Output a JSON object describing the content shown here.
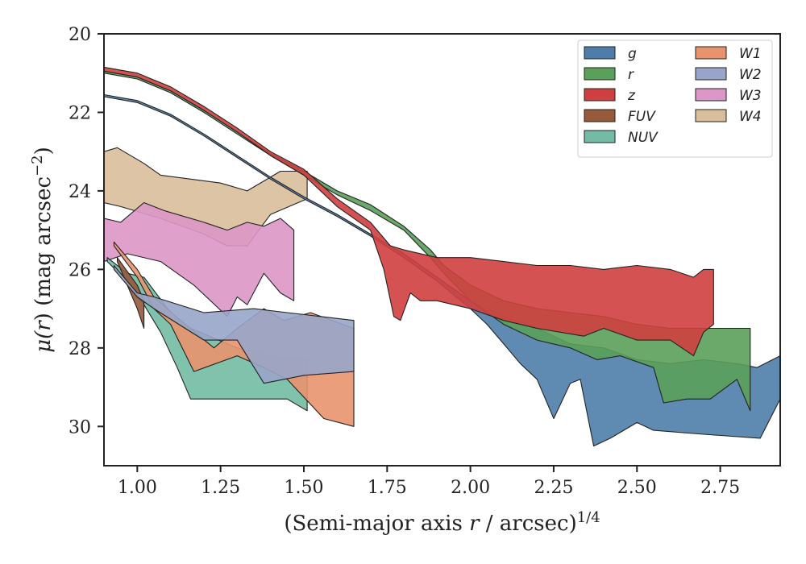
{
  "chart_data": {
    "type": "area",
    "xlabel": "(Semi-major axis r / arcsec)^1/4",
    "xlabel_parts": {
      "pre": "(Semi-major axis ",
      "var": "r",
      "post": " / arcsec)",
      "sup": "1/4"
    },
    "ylabel": "μ(r) (mag arcsec^-2)",
    "ylabel_parts": {
      "mu": "μ(",
      "var": "r",
      "close": ") (mag arcsec",
      "sup": "−2",
      "end": ")"
    },
    "xlim": [
      0.9,
      2.93
    ],
    "ylim": [
      31.0,
      20.0
    ],
    "y_inverted": true,
    "xticks": [
      1.0,
      1.25,
      1.5,
      1.75,
      2.0,
      2.25,
      2.5,
      2.75
    ],
    "xtick_labels": [
      "1.00",
      "1.25",
      "1.50",
      "1.75",
      "2.00",
      "2.25",
      "2.50",
      "2.75"
    ],
    "yticks": [
      20,
      22,
      24,
      26,
      28,
      30
    ],
    "ytick_labels": [
      "20",
      "22",
      "24",
      "26",
      "28",
      "30"
    ],
    "grid": false,
    "legend_position": "top-right",
    "legend_columns": 2,
    "series": [
      {
        "name": "W4",
        "color": "#d9be9a",
        "upper": [
          [
            0.9,
            23.0
          ],
          [
            0.94,
            22.9
          ],
          [
            1.02,
            23.3
          ],
          [
            1.07,
            23.6
          ],
          [
            1.25,
            23.8
          ],
          [
            1.33,
            24.0
          ],
          [
            1.43,
            23.5
          ],
          [
            1.51,
            23.5
          ]
        ],
        "lower": [
          [
            0.9,
            24.3
          ],
          [
            0.95,
            24.4
          ],
          [
            1.07,
            24.7
          ],
          [
            1.2,
            25.1
          ],
          [
            1.27,
            25.4
          ],
          [
            1.33,
            25.4
          ],
          [
            1.4,
            24.6
          ],
          [
            1.51,
            24.2
          ]
        ]
      },
      {
        "name": "W3",
        "color": "#dc97c7",
        "upper": [
          [
            0.9,
            24.7
          ],
          [
            0.95,
            24.8
          ],
          [
            1.02,
            24.3
          ],
          [
            1.08,
            24.5
          ],
          [
            1.2,
            24.8
          ],
          [
            1.27,
            25.0
          ],
          [
            1.33,
            24.8
          ],
          [
            1.38,
            24.9
          ],
          [
            1.43,
            24.7
          ],
          [
            1.47,
            25.0
          ]
        ],
        "lower": [
          [
            0.9,
            25.8
          ],
          [
            0.97,
            25.6
          ],
          [
            1.07,
            25.8
          ],
          [
            1.17,
            26.4
          ],
          [
            1.27,
            27.2
          ],
          [
            1.3,
            26.7
          ],
          [
            1.33,
            26.9
          ],
          [
            1.38,
            26.1
          ],
          [
            1.43,
            26.6
          ],
          [
            1.47,
            26.8
          ]
        ]
      },
      {
        "name": "NUV",
        "color": "#73bba4",
        "upper": [
          [
            0.91,
            25.7
          ],
          [
            0.97,
            26.1
          ],
          [
            1.02,
            26.2
          ],
          [
            1.1,
            27.1
          ],
          [
            1.16,
            27.5
          ],
          [
            1.3,
            28.0
          ],
          [
            1.45,
            28.3
          ],
          [
            1.51,
            28.3
          ]
        ],
        "lower": [
          [
            0.91,
            25.8
          ],
          [
            0.97,
            26.3
          ],
          [
            1.02,
            26.9
          ],
          [
            1.07,
            27.6
          ],
          [
            1.12,
            28.5
          ],
          [
            1.16,
            29.3
          ],
          [
            1.3,
            29.3
          ],
          [
            1.45,
            29.3
          ],
          [
            1.51,
            29.6
          ]
        ]
      },
      {
        "name": "W1",
        "color": "#e8936e",
        "upper": [
          [
            0.93,
            25.3
          ],
          [
            1.0,
            26.0
          ],
          [
            1.05,
            26.7
          ],
          [
            1.13,
            27.3
          ],
          [
            1.23,
            28.0
          ],
          [
            1.3,
            27.5
          ],
          [
            1.38,
            27.0
          ],
          [
            1.44,
            27.3
          ],
          [
            1.52,
            27.1
          ],
          [
            1.65,
            27.5
          ]
        ],
        "lower": [
          [
            0.93,
            25.4
          ],
          [
            1.0,
            26.2
          ],
          [
            1.05,
            27.0
          ],
          [
            1.1,
            27.4
          ],
          [
            1.17,
            28.6
          ],
          [
            1.3,
            28.2
          ],
          [
            1.38,
            28.5
          ],
          [
            1.45,
            28.8
          ],
          [
            1.56,
            29.8
          ],
          [
            1.65,
            30.0
          ]
        ]
      },
      {
        "name": "FUV",
        "color": "#96593a",
        "upper": [
          [
            0.94,
            25.7
          ],
          [
            1.0,
            26.4
          ],
          [
            1.02,
            26.8
          ]
        ],
        "lower": [
          [
            0.94,
            25.8
          ],
          [
            1.0,
            27.0
          ],
          [
            1.02,
            27.5
          ]
        ]
      },
      {
        "name": "W2",
        "color": "#98a5c9",
        "upper": [
          [
            0.93,
            25.9
          ],
          [
            1.0,
            26.6
          ],
          [
            1.05,
            26.7
          ],
          [
            1.2,
            27.1
          ],
          [
            1.35,
            27.0
          ],
          [
            1.45,
            27.1
          ],
          [
            1.55,
            27.2
          ],
          [
            1.65,
            27.3
          ]
        ],
        "lower": [
          [
            0.93,
            26.0
          ],
          [
            1.0,
            26.7
          ],
          [
            1.05,
            27.0
          ],
          [
            1.2,
            27.8
          ],
          [
            1.3,
            27.8
          ],
          [
            1.38,
            28.9
          ],
          [
            1.5,
            28.7
          ],
          [
            1.65,
            28.6
          ]
        ]
      },
      {
        "name": "g",
        "color": "#4e7daa",
        "upper": [
          [
            0.9,
            21.55
          ],
          [
            1.0,
            21.7
          ],
          [
            1.1,
            22.05
          ],
          [
            1.2,
            22.55
          ],
          [
            1.3,
            23.1
          ],
          [
            1.4,
            23.65
          ],
          [
            1.5,
            24.15
          ],
          [
            1.6,
            24.6
          ],
          [
            1.7,
            25.1
          ],
          [
            1.8,
            25.6
          ],
          [
            1.9,
            26.2
          ],
          [
            2.0,
            26.8
          ],
          [
            2.1,
            27.2
          ],
          [
            2.2,
            27.5
          ],
          [
            2.3,
            27.9
          ],
          [
            2.4,
            28.0
          ],
          [
            2.5,
            28.3
          ],
          [
            2.6,
            28.4
          ],
          [
            2.7,
            28.3
          ],
          [
            2.8,
            28.4
          ],
          [
            2.86,
            28.5
          ],
          [
            2.93,
            28.2
          ]
        ],
        "lower": [
          [
            0.9,
            21.6
          ],
          [
            1.0,
            21.75
          ],
          [
            1.1,
            22.1
          ],
          [
            1.2,
            22.6
          ],
          [
            1.3,
            23.15
          ],
          [
            1.4,
            23.7
          ],
          [
            1.5,
            24.2
          ],
          [
            1.6,
            24.65
          ],
          [
            1.7,
            25.15
          ],
          [
            1.8,
            25.7
          ],
          [
            1.9,
            26.3
          ],
          [
            2.0,
            27.0
          ],
          [
            2.05,
            27.4
          ],
          [
            2.1,
            27.9
          ],
          [
            2.15,
            28.4
          ],
          [
            2.2,
            28.8
          ],
          [
            2.25,
            29.8
          ],
          [
            2.3,
            28.9
          ],
          [
            2.33,
            28.8
          ],
          [
            2.37,
            30.5
          ],
          [
            2.42,
            30.3
          ],
          [
            2.5,
            29.9
          ],
          [
            2.55,
            30.1
          ],
          [
            2.7,
            30.2
          ],
          [
            2.87,
            30.3
          ],
          [
            2.93,
            29.3
          ]
        ]
      },
      {
        "name": "r",
        "color": "#5aa05a",
        "upper": [
          [
            0.9,
            20.95
          ],
          [
            1.0,
            21.1
          ],
          [
            1.1,
            21.45
          ],
          [
            1.2,
            21.95
          ],
          [
            1.3,
            22.5
          ],
          [
            1.4,
            23.05
          ],
          [
            1.5,
            23.5
          ],
          [
            1.6,
            24.0
          ],
          [
            1.7,
            24.35
          ],
          [
            1.8,
            24.9
          ],
          [
            1.88,
            25.5
          ],
          [
            1.92,
            25.9
          ],
          [
            2.0,
            26.4
          ],
          [
            2.1,
            26.8
          ],
          [
            2.2,
            27.0
          ],
          [
            2.3,
            27.1
          ],
          [
            2.4,
            27.2
          ],
          [
            2.5,
            27.4
          ],
          [
            2.6,
            27.5
          ],
          [
            2.7,
            27.5
          ],
          [
            2.78,
            27.5
          ],
          [
            2.84,
            27.5
          ]
        ],
        "lower": [
          [
            0.9,
            21.0
          ],
          [
            1.0,
            21.15
          ],
          [
            1.1,
            21.5
          ],
          [
            1.2,
            22.0
          ],
          [
            1.3,
            22.55
          ],
          [
            1.4,
            23.1
          ],
          [
            1.5,
            23.6
          ],
          [
            1.6,
            24.1
          ],
          [
            1.7,
            24.5
          ],
          [
            1.8,
            25.0
          ],
          [
            1.88,
            25.7
          ],
          [
            1.92,
            26.1
          ],
          [
            2.0,
            26.8
          ],
          [
            2.1,
            27.4
          ],
          [
            2.2,
            27.8
          ],
          [
            2.3,
            28.0
          ],
          [
            2.38,
            28.3
          ],
          [
            2.45,
            28.2
          ],
          [
            2.55,
            28.5
          ],
          [
            2.58,
            29.4
          ],
          [
            2.65,
            29.3
          ],
          [
            2.72,
            29.3
          ],
          [
            2.8,
            28.8
          ],
          [
            2.84,
            29.6
          ]
        ]
      },
      {
        "name": "z",
        "color": "#cf3f3f",
        "upper": [
          [
            0.9,
            20.85
          ],
          [
            1.0,
            21.0
          ],
          [
            1.1,
            21.35
          ],
          [
            1.2,
            21.85
          ],
          [
            1.3,
            22.4
          ],
          [
            1.4,
            23.0
          ],
          [
            1.5,
            23.45
          ],
          [
            1.6,
            24.2
          ],
          [
            1.7,
            24.8
          ],
          [
            1.76,
            25.4
          ],
          [
            1.8,
            25.5
          ],
          [
            1.9,
            25.7
          ],
          [
            2.0,
            25.7
          ],
          [
            2.1,
            25.8
          ],
          [
            2.2,
            25.9
          ],
          [
            2.3,
            25.9
          ],
          [
            2.4,
            26.0
          ],
          [
            2.5,
            25.9
          ],
          [
            2.6,
            26.0
          ],
          [
            2.67,
            26.2
          ],
          [
            2.7,
            26.0
          ],
          [
            2.73,
            26.0
          ]
        ],
        "lower": [
          [
            0.9,
            20.95
          ],
          [
            1.0,
            21.1
          ],
          [
            1.1,
            21.45
          ],
          [
            1.2,
            21.95
          ],
          [
            1.3,
            22.5
          ],
          [
            1.4,
            23.1
          ],
          [
            1.5,
            23.6
          ],
          [
            1.6,
            24.4
          ],
          [
            1.7,
            25.0
          ],
          [
            1.74,
            26.0
          ],
          [
            1.77,
            27.2
          ],
          [
            1.79,
            27.3
          ],
          [
            1.82,
            26.6
          ],
          [
            1.85,
            26.8
          ],
          [
            1.9,
            26.8
          ],
          [
            2.0,
            27.0
          ],
          [
            2.1,
            27.3
          ],
          [
            2.2,
            27.5
          ],
          [
            2.34,
            27.7
          ],
          [
            2.4,
            27.5
          ],
          [
            2.5,
            27.8
          ],
          [
            2.6,
            27.8
          ],
          [
            2.67,
            28.2
          ],
          [
            2.7,
            27.6
          ],
          [
            2.73,
            27.4
          ]
        ]
      }
    ]
  }
}
